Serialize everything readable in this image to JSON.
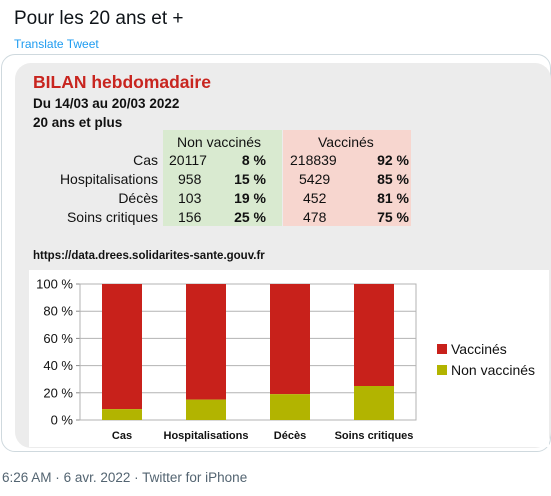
{
  "tweet": {
    "text": "Pour les 20 ans et +",
    "translate_label": "Translate Tweet"
  },
  "infographic": {
    "title": "BILAN hebdomadaire",
    "date_range": "Du 14/03 au 20/03 2022",
    "population": "20 ans et plus",
    "table": {
      "headers": [
        "Non vaccinés",
        "Vaccinés"
      ],
      "rows": [
        {
          "label": "Cas",
          "nv_count": "20117",
          "nv_pct": "8 %",
          "v_count": "218839",
          "v_pct": "92 %"
        },
        {
          "label": "Hospitalisations",
          "nv_count": "958",
          "nv_pct": "15 %",
          "v_count": "5429",
          "v_pct": "85 %"
        },
        {
          "label": "Décès",
          "nv_count": "103",
          "nv_pct": "19 %",
          "v_count": "452",
          "v_pct": "81 %"
        },
        {
          "label": "Soins critiques",
          "nv_count": "156",
          "nv_pct": "25 %",
          "v_count": "478",
          "v_pct": "75 %"
        }
      ]
    },
    "source_url": "https://data.drees.solidarites-sante.gouv.fr",
    "colors": {
      "title": "#c8251f",
      "nv_bg": "#d9ead0",
      "v_bg": "#f7d6cf"
    }
  },
  "chart_data": {
    "type": "bar",
    "stacked": true,
    "categories": [
      "Cas",
      "Hospitalisations",
      "Décès",
      "Soins critiques"
    ],
    "series": [
      {
        "name": "Non vaccinés",
        "values": [
          8,
          15,
          19,
          25
        ],
        "color": "#b2b400"
      },
      {
        "name": "Vaccinés",
        "values": [
          92,
          85,
          81,
          75
        ],
        "color": "#c8211b"
      }
    ],
    "ylim": [
      0,
      100
    ],
    "yticks": [
      "0 %",
      "20 %",
      "40 %",
      "60 %",
      "80 %",
      "100 %"
    ],
    "grid": true,
    "legend_placement": "right"
  },
  "footer": {
    "time": "6:26 AM",
    "sep1": "·",
    "date": "6 avr. 2022",
    "sep2": "·",
    "source": "Twitter for iPhone"
  }
}
